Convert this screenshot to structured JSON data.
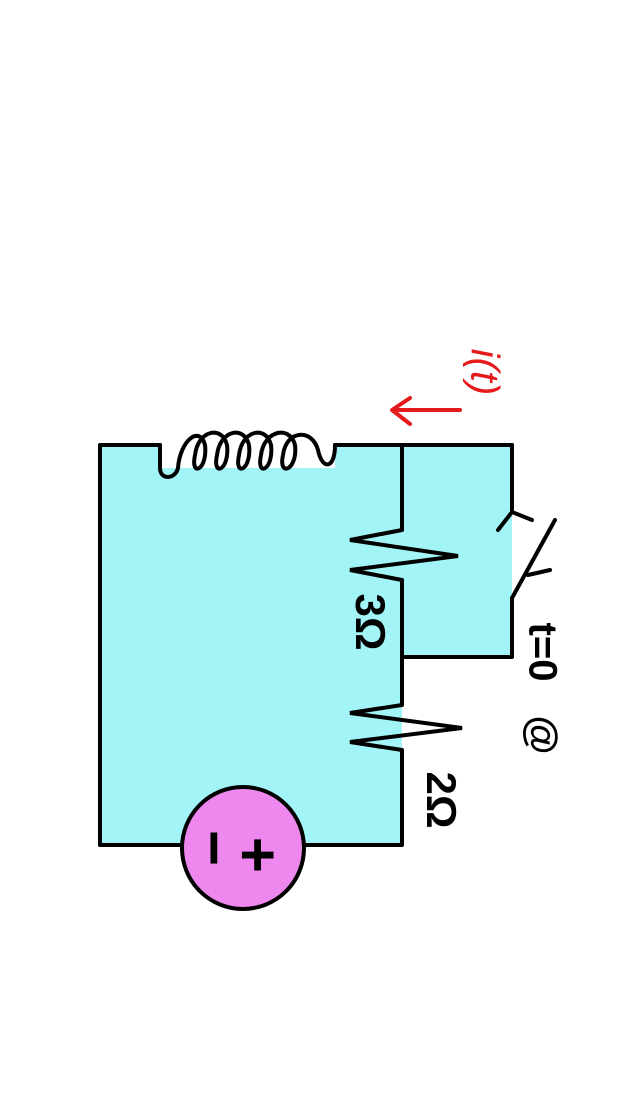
{
  "labels": {
    "resistor_top": "3Ω",
    "resistor_bottom": "2Ω",
    "switch_time": "t=0",
    "switch_at": "@",
    "current": "i(t)",
    "source_plus": "+",
    "source_minus": "−"
  },
  "colors": {
    "region_fill": "#a3f4f6",
    "wire": "#000000",
    "source_fill": "#ee88ee",
    "current_arrow": "#e51b1b",
    "background": "#ffffff"
  }
}
